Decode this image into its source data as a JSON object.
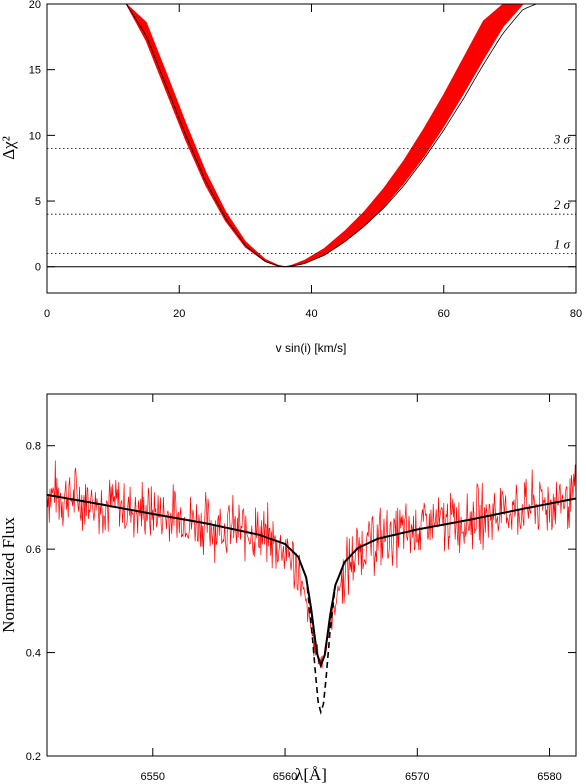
{
  "chart_data": [
    {
      "type": "line",
      "xlabel": "v sin(i) [km/s]",
      "ylabel": "Δχ²",
      "xlim": [
        0,
        80
      ],
      "ylim": [
        -2,
        20
      ],
      "xticks": [
        0,
        20,
        40,
        60,
        80
      ],
      "yticks": [
        0,
        5,
        10,
        15,
        20
      ],
      "grid": false,
      "band": {
        "name": "Δχ² curves",
        "color": "#ff0000",
        "x": [
          12,
          15,
          18,
          21,
          24,
          27,
          30,
          33,
          35,
          36,
          37,
          39,
          42,
          45,
          48,
          51,
          54,
          57,
          60,
          63,
          66,
          69,
          72
        ],
        "y_low": [
          20.0,
          17.2,
          13.4,
          9.6,
          6.2,
          3.5,
          1.5,
          0.4,
          0.05,
          0.0,
          0.05,
          0.25,
          0.9,
          1.9,
          3.1,
          4.6,
          6.4,
          8.4,
          10.7,
          13.2,
          15.8,
          18.3,
          20.0
        ],
        "y_high": [
          20.0,
          18.6,
          14.8,
          10.9,
          7.2,
          4.2,
          1.9,
          0.55,
          0.1,
          0.0,
          0.1,
          0.5,
          1.4,
          2.7,
          4.2,
          6.0,
          8.1,
          10.5,
          13.1,
          15.9,
          18.7,
          20.0,
          20.0
        ]
      },
      "reference_curve": {
        "color": "#000000",
        "x": [
          12,
          15,
          18,
          21,
          24,
          27,
          30,
          33,
          35,
          36,
          37,
          39,
          42,
          45,
          48,
          51,
          54,
          57,
          60,
          63,
          66,
          69,
          72,
          74
        ],
        "y": [
          20.0,
          17.6,
          13.8,
          10.0,
          6.5,
          3.7,
          1.6,
          0.4,
          0.05,
          0.0,
          0.05,
          0.25,
          0.9,
          1.9,
          3.1,
          4.5,
          6.2,
          8.2,
          10.4,
          12.8,
          15.4,
          17.8,
          19.6,
          20.0
        ]
      },
      "reference_lines": [
        {
          "y": 1,
          "label": "1 σ",
          "style": "dotted"
        },
        {
          "y": 4,
          "label": "2 σ",
          "style": "dotted"
        },
        {
          "y": 9,
          "label": "3 σ",
          "style": "dotted"
        },
        {
          "y": 0,
          "label": "",
          "style": "solid"
        }
      ]
    },
    {
      "type": "line",
      "xlabel": "λ[Å]",
      "ylabel": "Normalized Flux",
      "xlim": [
        6542,
        6582
      ],
      "ylim": [
        0.2,
        0.9
      ],
      "xticks": [
        6550,
        6560,
        6570,
        6580
      ],
      "yticks": [
        0.2,
        0.4,
        0.6,
        0.8
      ],
      "grid": false,
      "series": [
        {
          "role": "observed spectrum",
          "color": "#ff0000",
          "style": "solid",
          "noise_amplitude": 0.05,
          "x": [
            6542,
            6546,
            6550,
            6554,
            6558,
            6560,
            6561,
            6561.8,
            6562.3,
            6562.8,
            6563.3,
            6564,
            6565,
            6566,
            6570,
            6574,
            6578,
            6582
          ],
          "y": [
            0.71,
            0.69,
            0.67,
            0.65,
            0.63,
            0.6,
            0.56,
            0.47,
            0.4,
            0.38,
            0.44,
            0.52,
            0.58,
            0.61,
            0.64,
            0.66,
            0.68,
            0.7
          ]
        },
        {
          "role": "model fit",
          "color": "#000000",
          "style": "solid",
          "x": [
            6542,
            6546,
            6550,
            6554,
            6558,
            6560,
            6561,
            6561.6,
            6562.0,
            6562.4,
            6562.7,
            6563.0,
            6563.4,
            6563.8,
            6564.5,
            6565.5,
            6567,
            6570,
            6574,
            6578,
            6582
          ],
          "y": [
            0.705,
            0.687,
            0.668,
            0.65,
            0.628,
            0.61,
            0.585,
            0.545,
            0.48,
            0.4,
            0.375,
            0.395,
            0.47,
            0.53,
            0.575,
            0.602,
            0.62,
            0.638,
            0.657,
            0.678,
            0.698
          ]
        },
        {
          "role": "model fit (core)",
          "color": "#000000",
          "style": "dashed",
          "x": [
            6561.6,
            6562.0,
            6562.3,
            6562.5,
            6562.7,
            6562.9,
            6563.1,
            6563.4,
            6563.8
          ],
          "y": [
            0.545,
            0.45,
            0.36,
            0.305,
            0.285,
            0.3,
            0.35,
            0.44,
            0.53
          ]
        }
      ]
    }
  ]
}
